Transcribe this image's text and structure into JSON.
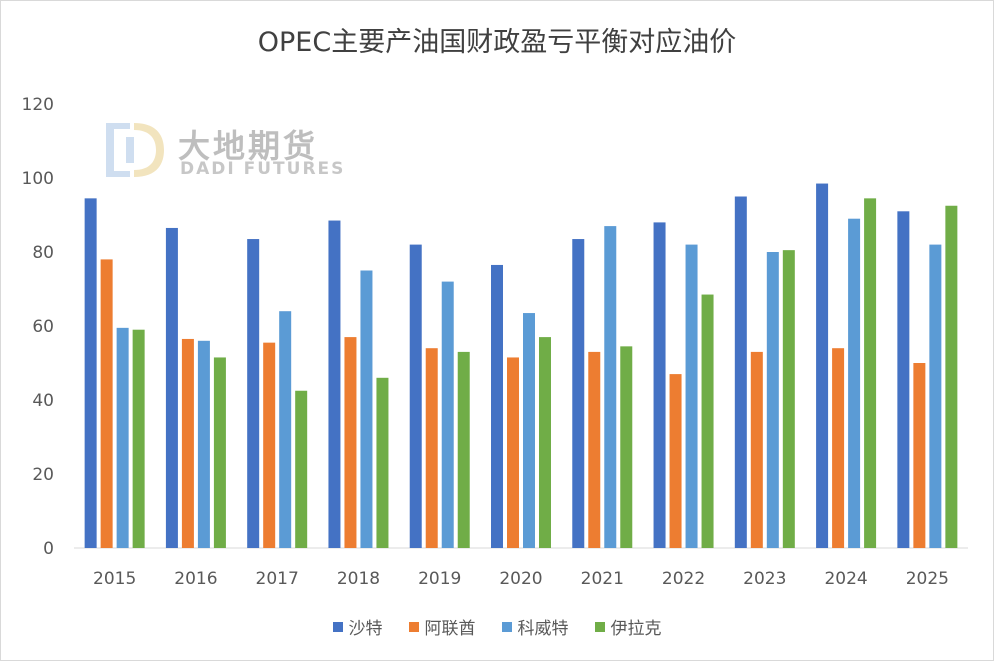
{
  "chart_data": {
    "type": "bar",
    "title": "OPEC主要产油国财政盈亏平衡对应油价",
    "categories": [
      "2015",
      "2016",
      "2017",
      "2018",
      "2019",
      "2020",
      "2021",
      "2022",
      "2023",
      "2024",
      "2025"
    ],
    "series": [
      {
        "name": "沙特",
        "color": "#4472C4",
        "values": [
          94.5,
          86.5,
          83.5,
          88.5,
          82,
          76.5,
          83.5,
          88,
          95,
          98.5,
          91
        ]
      },
      {
        "name": "阿联酋",
        "color": "#ED7D31",
        "values": [
          78,
          56.5,
          55.5,
          57,
          54,
          51.5,
          53,
          47,
          53,
          54,
          50
        ]
      },
      {
        "name": "科威特",
        "color": "#5B9BD5",
        "values": [
          59.5,
          56,
          64,
          75,
          72,
          63.5,
          87,
          82,
          80,
          89,
          82
        ]
      },
      {
        "name": "伊拉克",
        "color": "#70AD47",
        "values": [
          59,
          51.5,
          42.5,
          46,
          53,
          57,
          54.5,
          68.5,
          80.5,
          94.5,
          92.5
        ]
      }
    ],
    "ylim": [
      0,
      120
    ],
    "yticks": [
      "0",
      "20",
      "40",
      "60",
      "80",
      "100",
      "120"
    ],
    "grid": false,
    "legend_position": "bottom"
  },
  "watermark": {
    "cn": "大地期货",
    "en": "DADI FUTURES"
  }
}
